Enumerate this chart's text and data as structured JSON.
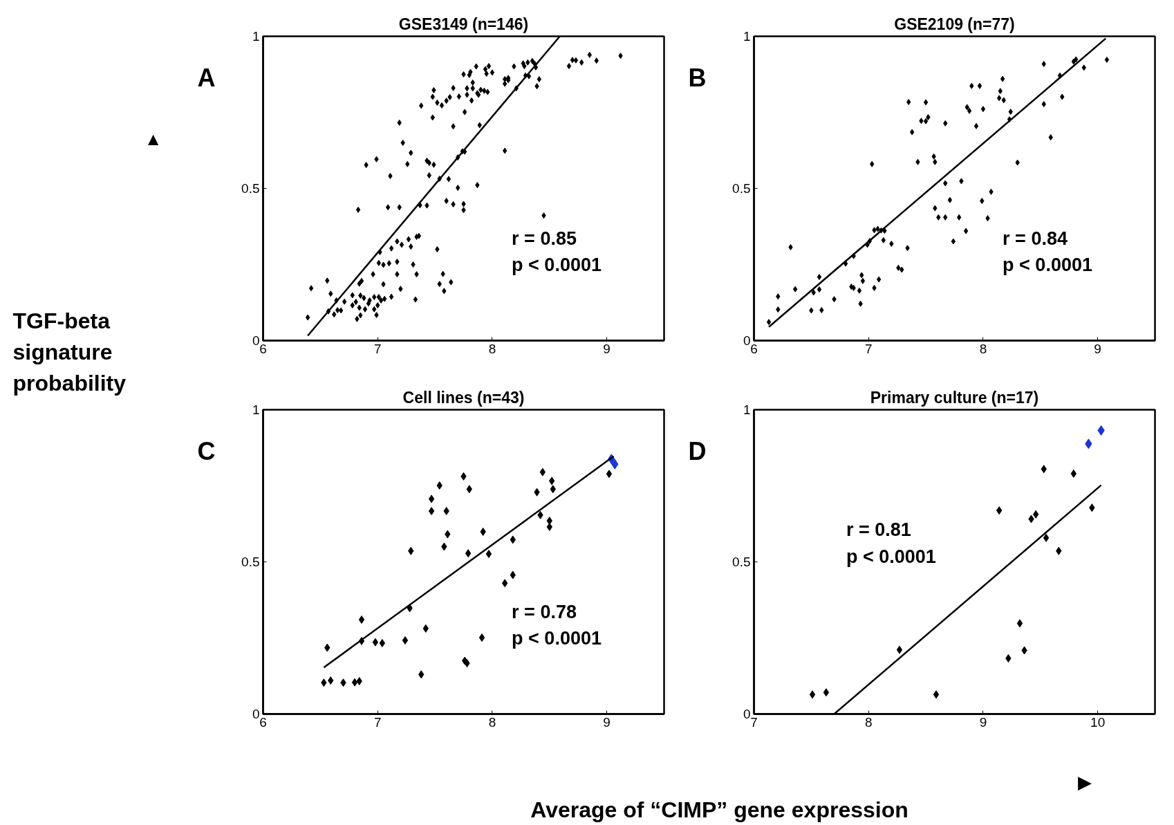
{
  "chart_data": [
    {
      "type": "scatter",
      "title": "GSE3149 (n=146)",
      "ylabel": "TGF-beta signature probability",
      "xlim": [
        6,
        9.5
      ],
      "xticks": [
        6,
        7,
        8,
        9
      ],
      "ylim": [
        0,
        1
      ],
      "yticks": [
        0,
        0.5,
        1
      ],
      "annotations": [
        "A",
        "r = 0.85",
        "p < 0.0001",
        "▲"
      ],
      "series": [
        {
          "marker": "diamond",
          "color": "#000000",
          "x": [
            6.39,
            6.42,
            6.56,
            6.57,
            6.59,
            6.62,
            6.64,
            6.65,
            6.68,
            6.71,
            6.78,
            6.78,
            6.81,
            6.82,
            6.83,
            6.84,
            6.85,
            6.84,
            6.86,
            6.85,
            6.88,
            6.89,
            6.9,
            6.92,
            6.93,
            6.96,
            6.97,
            6.97,
            6.99,
            6.99,
            7.0,
            7.01,
            7.01,
            7.02,
            7.03,
            7.05,
            7.05,
            7.06,
            7.1,
            7.09,
            7.11,
            7.12,
            7.12,
            7.17,
            7.17,
            7.17,
            7.19,
            7.19,
            7.2,
            7.21,
            7.22,
            7.26,
            7.27,
            7.29,
            7.29,
            7.31,
            7.33,
            7.34,
            7.34,
            7.36,
            7.37,
            7.38,
            7.43,
            7.43,
            7.45,
            7.45,
            7.48,
            7.48,
            7.49,
            7.49,
            7.52,
            7.52,
            7.54,
            7.54,
            7.56,
            7.57,
            7.58,
            7.6,
            7.6,
            7.62,
            7.63,
            7.64,
            7.66,
            7.66,
            7.66,
            7.7,
            7.7,
            7.71,
            7.74,
            7.75,
            7.75,
            7.75,
            7.76,
            7.76,
            7.78,
            7.78,
            7.8,
            7.81,
            7.82,
            7.83,
            7.83,
            7.86,
            7.87,
            7.87,
            7.88,
            7.89,
            7.9,
            7.93,
            7.94,
            7.95,
            7.96,
            7.97,
            8.0,
            8.11,
            8.11,
            8.11,
            8.14,
            8.14,
            8.19,
            8.21,
            8.27,
            8.28,
            8.29,
            8.31,
            8.32,
            8.35,
            8.37,
            8.38,
            8.39,
            8.41,
            8.45,
            8.67,
            8.7,
            8.73,
            8.78,
            8.85,
            8.91,
            9.12
          ],
          "values": [
            0.076,
            0.172,
            0.197,
            0.096,
            0.154,
            0.086,
            0.132,
            0.1,
            0.099,
            0.128,
            0.149,
            0.116,
            0.127,
            0.071,
            0.43,
            0.108,
            0.148,
            0.187,
            0.196,
            0.083,
            0.14,
            0.103,
            0.577,
            0.122,
            0.132,
            0.218,
            0.143,
            0.103,
            0.084,
            0.596,
            0.116,
            0.255,
            0.143,
            0.291,
            0.132,
            0.249,
            0.185,
            0.137,
            0.254,
            0.438,
            0.541,
            0.303,
            0.144,
            0.259,
            0.218,
            0.326,
            0.438,
            0.716,
            0.17,
            0.315,
            0.65,
            0.58,
            0.333,
            0.617,
            0.309,
            0.25,
            0.135,
            0.218,
            0.341,
            0.344,
            0.445,
            0.772,
            0.444,
            0.591,
            0.543,
            0.584,
            0.733,
            0.801,
            0.823,
            0.578,
            0.3,
            0.782,
            0.532,
            0.186,
            0.773,
            0.219,
            0.163,
            0.788,
            0.459,
            0.531,
            0.8,
            0.192,
            0.704,
            0.83,
            0.448,
            0.502,
            0.602,
            0.802,
            0.622,
            0.449,
            0.429,
            0.875,
            0.751,
            0.621,
            0.808,
            0.829,
            0.873,
            0.883,
            0.789,
            0.848,
            0.829,
            0.901,
            0.813,
            0.511,
            0.808,
            0.708,
            0.824,
            0.821,
            0.892,
            0.877,
            0.817,
            0.902,
            0.881,
            0.859,
            0.844,
            0.624,
            0.863,
            0.856,
            0.901,
            0.829,
            0.911,
            0.902,
            0.871,
            0.914,
            0.869,
            0.919,
            0.91,
            0.898,
            0.836,
            0.859,
            0.411,
            0.902,
            0.922,
            0.921,
            0.914,
            0.939,
            0.92,
            0.936
          ]
        },
        {
          "type": "line",
          "color": "#000000",
          "x": [
            6.39,
            8.59
          ],
          "values": [
            0.016,
            1.0
          ]
        }
      ]
    },
    {
      "type": "scatter",
      "title": "GSE2109 (n=77)",
      "xlim": [
        6,
        9.5
      ],
      "xticks": [
        6,
        7,
        8,
        9
      ],
      "ylim": [
        0,
        1
      ],
      "yticks": [
        0,
        0.5,
        1
      ],
      "annotations": [
        "B",
        "r = 0.84",
        "p < 0.0001"
      ],
      "series": [
        {
          "marker": "diamond",
          "color": "#000000",
          "x": [
            6.13,
            6.21,
            6.21,
            6.32,
            6.36,
            6.5,
            6.52,
            6.57,
            6.57,
            6.59,
            6.7,
            6.8,
            6.85,
            6.87,
            6.87,
            6.92,
            6.93,
            6.94,
            6.95,
            6.99,
            7.01,
            7.03,
            7.05,
            7.05,
            7.08,
            7.09,
            7.11,
            7.14,
            7.13,
            7.2,
            7.26,
            7.29,
            7.34,
            7.35,
            7.38,
            7.43,
            7.46,
            7.5,
            7.5,
            7.52,
            7.57,
            7.58,
            7.58,
            7.61,
            7.67,
            7.67,
            7.67,
            7.71,
            7.74,
            7.79,
            7.81,
            7.85,
            7.86,
            7.88,
            7.9,
            7.94,
            7.97,
            7.99,
            8.0,
            8.04,
            8.07,
            8.14,
            8.15,
            8.17,
            8.18,
            8.23,
            8.24,
            8.3,
            8.53,
            8.53,
            8.59,
            8.67,
            8.69,
            8.79,
            8.81,
            8.88,
            9.08
          ],
          "values": [
            0.061,
            0.145,
            0.102,
            0.307,
            0.169,
            0.099,
            0.158,
            0.168,
            0.209,
            0.1,
            0.136,
            0.253,
            0.177,
            0.278,
            0.173,
            0.164,
            0.121,
            0.215,
            0.196,
            0.315,
            0.327,
            0.58,
            0.173,
            0.363,
            0.367,
            0.201,
            0.362,
            0.361,
            0.33,
            0.318,
            0.239,
            0.233,
            0.304,
            0.784,
            0.685,
            0.587,
            0.722,
            0.783,
            0.721,
            0.734,
            0.605,
            0.587,
            0.435,
            0.405,
            0.405,
            0.714,
            0.517,
            0.462,
            0.326,
            0.405,
            0.524,
            0.36,
            0.767,
            0.755,
            0.837,
            0.705,
            0.837,
            0.459,
            0.761,
            0.402,
            0.489,
            0.797,
            0.82,
            0.86,
            0.79,
            0.727,
            0.752,
            0.585,
            0.909,
            0.777,
            0.668,
            0.871,
            0.801,
            0.917,
            0.924,
            0.897,
            0.923
          ]
        },
        {
          "type": "line",
          "color": "#000000",
          "x": [
            6.13,
            9.07
          ],
          "values": [
            0.045,
            0.993
          ]
        }
      ]
    },
    {
      "type": "scatter",
      "title": "Cell lines (n=43)",
      "xlim": [
        6,
        9.5
      ],
      "xticks": [
        6,
        7,
        8,
        9
      ],
      "ylim": [
        0,
        1
      ],
      "yticks": [
        0,
        0.5,
        1
      ],
      "annotations": [
        "C",
        "r = 0.78",
        "p < 0.0001"
      ],
      "series": [
        {
          "marker": "diamond",
          "color": "#000000",
          "x": [
            6.53,
            6.56,
            6.59,
            6.7,
            6.8,
            6.84,
            6.86,
            6.86,
            6.98,
            7.04,
            7.24,
            7.28,
            7.29,
            7.38,
            7.42,
            7.47,
            7.47,
            7.54,
            7.58,
            7.6,
            7.61,
            7.75,
            7.76,
            7.78,
            7.79,
            7.8,
            7.91,
            7.92,
            7.97,
            8.11,
            8.18,
            8.18,
            8.39,
            8.42,
            8.44,
            8.5,
            8.5,
            8.52,
            8.53,
            9.02
          ],
          "values": [
            0.103,
            0.218,
            0.11,
            0.103,
            0.104,
            0.108,
            0.31,
            0.24,
            0.236,
            0.233,
            0.242,
            0.348,
            0.536,
            0.13,
            0.281,
            0.707,
            0.667,
            0.751,
            0.55,
            0.667,
            0.591,
            0.781,
            0.175,
            0.167,
            0.528,
            0.739,
            0.251,
            0.599,
            0.526,
            0.43,
            0.457,
            0.573,
            0.729,
            0.654,
            0.795,
            0.615,
            0.635,
            0.766,
            0.739,
            0.789
          ]
        },
        {
          "marker": "diamond",
          "color": "#1a35d4",
          "x": [
            9.04,
            9.07
          ],
          "values": [
            0.838,
            0.821
          ]
        },
        {
          "type": "line",
          "color": "#000000",
          "x": [
            6.53,
            9.06
          ],
          "values": [
            0.153,
            0.847
          ]
        }
      ]
    },
    {
      "type": "scatter",
      "title": "Primary culture (n=17)",
      "xlabel": "Average of “CIMP” gene expression",
      "xlim": [
        7,
        10.5
      ],
      "xticks": [
        7,
        8,
        9,
        10
      ],
      "ylim": [
        0,
        1
      ],
      "yticks": [
        0,
        0.5,
        1
      ],
      "annotations": [
        "D",
        "r = 0.81",
        "p < 0.0001",
        "▶"
      ],
      "series": [
        {
          "marker": "diamond",
          "color": "#000000",
          "x": [
            7.51,
            7.63,
            8.27,
            8.59,
            9.14,
            9.22,
            9.32,
            9.36,
            9.42,
            9.46,
            9.53,
            9.55,
            9.66,
            9.79,
            9.95
          ],
          "values": [
            0.064,
            0.071,
            0.211,
            0.064,
            0.669,
            0.183,
            0.298,
            0.209,
            0.641,
            0.656,
            0.805,
            0.579,
            0.536,
            0.79,
            0.678
          ]
        },
        {
          "marker": "diamond",
          "color": "#1a35d4",
          "x": [
            9.92,
            10.03
          ],
          "values": [
            0.888,
            0.932
          ]
        },
        {
          "type": "line",
          "color": "#000000",
          "x": [
            7.7,
            10.03
          ],
          "values": [
            0.0,
            0.752
          ]
        }
      ]
    }
  ]
}
